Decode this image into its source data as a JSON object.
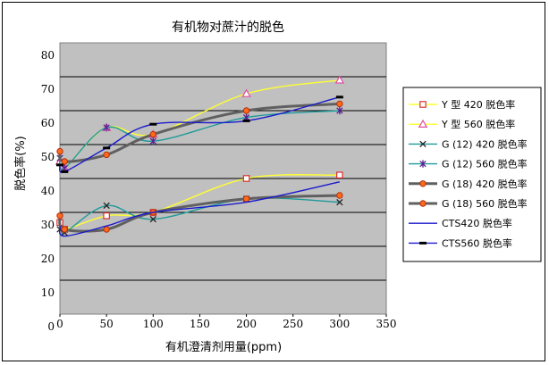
{
  "chart_data": {
    "type": "line",
    "title": "有机物对蔗汁的脱色",
    "xlabel": "有机澄清剂用量(ppm)",
    "ylabel": "脱色率(%)",
    "xlim": [
      0,
      350
    ],
    "ylim": [
      0,
      80
    ],
    "x_ticks": [
      0,
      50,
      100,
      150,
      200,
      250,
      300,
      350
    ],
    "y_tick_labels": [
      "80",
      "70",
      "60",
      "50",
      "40",
      "30",
      "20",
      "10",
      "0"
    ],
    "grid": "horizontal",
    "legend_position": "right",
    "series": [
      {
        "name": "Y 型 420 脱色率",
        "color": "#ffff33",
        "marker": "square",
        "x": [
          0,
          5,
          50,
          100,
          200,
          300
        ],
        "y": [
          27,
          25,
          29,
          30,
          40,
          41
        ]
      },
      {
        "name": "Y 型 560 脱色率",
        "color": "#ffff33",
        "marker": "triangle",
        "x": [
          0,
          5,
          50,
          100,
          200,
          300
        ],
        "y": [
          45,
          43,
          55,
          53,
          65,
          69
        ]
      },
      {
        "name": "G (12) 420 脱色率",
        "color": "#1f9a9a",
        "marker": "x",
        "x": [
          0,
          5,
          50,
          100,
          200,
          300
        ],
        "y": [
          25,
          24,
          32,
          28,
          34,
          33
        ]
      },
      {
        "name": "G (12) 560 脱色率",
        "color": "#1f9a9a",
        "marker": "star",
        "x": [
          0,
          5,
          50,
          100,
          200,
          300
        ],
        "y": [
          46,
          43,
          55,
          51,
          58,
          60
        ]
      },
      {
        "name": "G (18) 420 脱色率",
        "color": "#606060",
        "marker": "circle",
        "x": [
          0,
          5,
          50,
          100,
          200,
          300
        ],
        "y": [
          29,
          25,
          25,
          30,
          34,
          35
        ]
      },
      {
        "name": "G (18) 560 脱色率",
        "color": "#606060",
        "marker": "circle",
        "x": [
          0,
          5,
          50,
          100,
          200,
          300
        ],
        "y": [
          48,
          45,
          47,
          53,
          60,
          62
        ]
      },
      {
        "name": "CTS420 脱色率",
        "color": "#1a1acc",
        "marker": "none",
        "x": [
          0,
          5,
          50,
          100,
          200,
          300
        ],
        "y": [
          26,
          23,
          26,
          30,
          33,
          39
        ]
      },
      {
        "name": "CTS560 脱色率",
        "color": "#1a1acc",
        "marker": "dash",
        "x": [
          0,
          5,
          50,
          100,
          200,
          300
        ],
        "y": [
          44,
          42,
          49,
          56,
          57,
          64
        ]
      }
    ]
  }
}
